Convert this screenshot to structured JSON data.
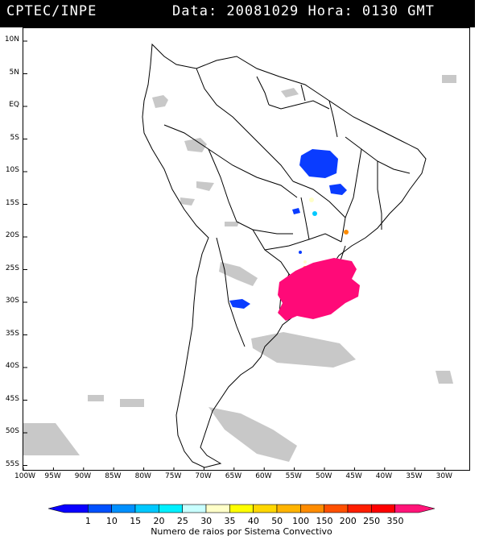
{
  "header": {
    "source": "CPTEC/INPE",
    "datetime": "Data: 20081029 Hora: 0130 GMT"
  },
  "map": {
    "lat_labels": [
      "10N",
      "5N",
      "EQ",
      "5S",
      "10S",
      "15S",
      "20S",
      "25S",
      "30S",
      "35S",
      "40S",
      "45S",
      "50S",
      "55S"
    ],
    "lon_labels": [
      "100W",
      "95W",
      "90W",
      "85W",
      "80W",
      "75W",
      "70W",
      "65W",
      "60W",
      "55W",
      "50W",
      "45W",
      "40W",
      "35W",
      "30W"
    ],
    "lat_range": [
      10,
      -55
    ],
    "lon_range": [
      -100,
      -30
    ],
    "land_outline_color": "#000000",
    "cloud_color": "#c8c8c8",
    "lightning_clusters": [
      {
        "region": "central Brazil (north)",
        "category": "10",
        "color": "#0a3cff"
      },
      {
        "region": "central Brazil (east)",
        "category": "10",
        "color": "#0a3cff"
      },
      {
        "region": "Paraguay-southern Brazil",
        "category": "350",
        "color": "#ff0a78"
      },
      {
        "region": "northern Argentina",
        "category": "10",
        "color": "#0a3cff"
      }
    ]
  },
  "colorbar": {
    "labels": [
      "1",
      "10",
      "15",
      "20",
      "25",
      "30",
      "35",
      "40",
      "50",
      "100",
      "150",
      "200",
      "250",
      "350"
    ],
    "colors": [
      "#0a00ff",
      "#0050ff",
      "#0090ff",
      "#00c8ff",
      "#00f0ff",
      "#c8ffff",
      "#ffffc8",
      "#ffff00",
      "#ffd700",
      "#ffb400",
      "#ff8c00",
      "#ff5000",
      "#ff1e00",
      "#ff0000",
      "#ff1478"
    ],
    "caption": "Numero de raios por Sistema Convectivo"
  }
}
